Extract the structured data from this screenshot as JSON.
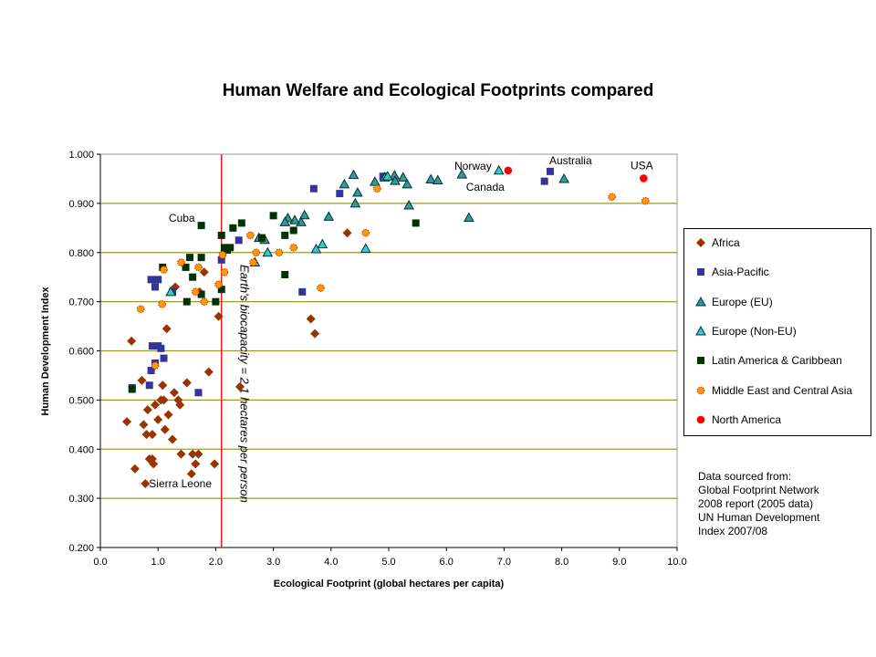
{
  "chart_data": {
    "type": "scatter",
    "title": "Human Welfare and Ecological Footprints compared",
    "xlabel": "Ecological Footprint (global hectares per capita)",
    "ylabel": "Human Development Index",
    "xlim": [
      0,
      10
    ],
    "ylim": [
      0.2,
      1.0
    ],
    "xticks": [
      "0.0",
      "1.0",
      "2.0",
      "3.0",
      "4.0",
      "5.0",
      "6.0",
      "7.0",
      "8.0",
      "9.0",
      "10.0"
    ],
    "yticks": [
      "0.200",
      "0.300",
      "0.400",
      "0.500",
      "0.600",
      "0.700",
      "0.800",
      "0.900",
      "1.000"
    ],
    "grid": "horizontal",
    "legend_placement": "right",
    "reference_line": {
      "x": 2.1,
      "label": "Earth's biocapacity = 2.1 hectares per person",
      "color": "#FF0000"
    },
    "annotations": [
      {
        "text": "Cuba",
        "x": 1.75,
        "y": 0.855
      },
      {
        "text": "Sierra Leone",
        "x": 0.78,
        "y": 0.33
      },
      {
        "text": "Norway",
        "x": 6.91,
        "y": 0.967
      },
      {
        "text": "Canada",
        "x": 7.07,
        "y": 0.967
      },
      {
        "text": "Australia",
        "x": 7.8,
        "y": 0.965
      },
      {
        "text": "USA",
        "x": 9.42,
        "y": 0.951
      }
    ],
    "series": [
      {
        "name": "Africa",
        "marker": "diamond",
        "color": "#993300",
        "points": [
          [
            0.46,
            0.456
          ],
          [
            0.54,
            0.62
          ],
          [
            0.6,
            0.36
          ],
          [
            0.78,
            0.33
          ],
          [
            0.72,
            0.54
          ],
          [
            0.75,
            0.45
          ],
          [
            0.8,
            0.43
          ],
          [
            0.82,
            0.48
          ],
          [
            0.85,
            0.38
          ],
          [
            0.9,
            0.38
          ],
          [
            0.9,
            0.43
          ],
          [
            0.92,
            0.37
          ],
          [
            0.95,
            0.49
          ],
          [
            1.0,
            0.46
          ],
          [
            1.05,
            0.5
          ],
          [
            1.08,
            0.53
          ],
          [
            1.1,
            0.5
          ],
          [
            1.12,
            0.44
          ],
          [
            1.15,
            0.645
          ],
          [
            1.18,
            0.47
          ],
          [
            1.25,
            0.42
          ],
          [
            1.28,
            0.515
          ],
          [
            1.3,
            0.73
          ],
          [
            1.35,
            0.5
          ],
          [
            1.38,
            0.49
          ],
          [
            1.4,
            0.39
          ],
          [
            1.5,
            0.535
          ],
          [
            1.58,
            0.35
          ],
          [
            1.6,
            0.39
          ],
          [
            1.65,
            0.37
          ],
          [
            1.7,
            0.39
          ],
          [
            1.8,
            0.76
          ],
          [
            1.88,
            0.557
          ],
          [
            1.98,
            0.37
          ],
          [
            2.05,
            0.67
          ],
          [
            1.72,
            0.72
          ],
          [
            2.42,
            0.527
          ],
          [
            3.65,
            0.665
          ],
          [
            3.72,
            0.635
          ],
          [
            4.28,
            0.84
          ]
        ]
      },
      {
        "name": "Asia-Pacific",
        "marker": "square",
        "color": "#333399",
        "points": [
          [
            0.55,
            0.525
          ],
          [
            0.85,
            0.53
          ],
          [
            0.88,
            0.56
          ],
          [
            0.9,
            0.61
          ],
          [
            0.95,
            0.575
          ],
          [
            1.0,
            0.61
          ],
          [
            1.05,
            0.605
          ],
          [
            1.1,
            0.585
          ],
          [
            0.88,
            0.745
          ],
          [
            0.95,
            0.73
          ],
          [
            1.0,
            0.745
          ],
          [
            1.7,
            0.515
          ],
          [
            2.1,
            0.785
          ],
          [
            2.4,
            0.825
          ],
          [
            3.5,
            0.72
          ],
          [
            3.7,
            0.93
          ],
          [
            4.15,
            0.92
          ],
          [
            4.9,
            0.955
          ],
          [
            7.7,
            0.945
          ],
          [
            7.8,
            0.965
          ],
          [
            1.25,
            0.72
          ]
        ]
      },
      {
        "name": "Europe (EU)",
        "marker": "triangle",
        "color": "#339999",
        "points": [
          [
            4.39,
            0.958
          ],
          [
            4.23,
            0.939
          ],
          [
            4.46,
            0.922
          ],
          [
            4.42,
            0.9
          ],
          [
            4.76,
            0.944
          ],
          [
            4.93,
            0.953
          ],
          [
            5.1,
            0.957
          ],
          [
            5.11,
            0.946
          ],
          [
            5.25,
            0.953
          ],
          [
            5.32,
            0.939
          ],
          [
            5.35,
            0.896
          ],
          [
            5.73,
            0.949
          ],
          [
            5.85,
            0.947
          ],
          [
            6.27,
            0.959
          ],
          [
            6.39,
            0.871
          ],
          [
            8.04,
            0.95
          ],
          [
            3.54,
            0.876
          ],
          [
            3.48,
            0.862
          ],
          [
            3.96,
            0.873
          ],
          [
            3.37,
            0.866
          ],
          [
            3.25,
            0.87
          ],
          [
            3.2,
            0.862
          ],
          [
            2.85,
            0.826
          ],
          [
            2.75,
            0.83
          ]
        ]
      },
      {
        "name": "Europe (Non-EU)",
        "marker": "triangle",
        "color": "#33CCCC",
        "points": [
          [
            6.91,
            0.967
          ],
          [
            4.98,
            0.955
          ],
          [
            3.74,
            0.807
          ],
          [
            3.85,
            0.817
          ],
          [
            4.6,
            0.808
          ],
          [
            1.22,
            0.72
          ],
          [
            2.68,
            0.78
          ],
          [
            2.9,
            0.8
          ]
        ]
      },
      {
        "name": "Latin America & Caribbean",
        "marker": "square",
        "color": "#003300",
        "points": [
          [
            0.55,
            0.522
          ],
          [
            1.08,
            0.77
          ],
          [
            1.48,
            0.77
          ],
          [
            1.55,
            0.79
          ],
          [
            1.6,
            0.75
          ],
          [
            1.75,
            0.79
          ],
          [
            1.75,
            0.715
          ],
          [
            1.5,
            0.7
          ],
          [
            1.75,
            0.855
          ],
          [
            2.0,
            0.7
          ],
          [
            2.1,
            0.835
          ],
          [
            2.15,
            0.81
          ],
          [
            2.2,
            0.805
          ],
          [
            2.3,
            0.85
          ],
          [
            2.45,
            0.86
          ],
          [
            2.1,
            0.725
          ],
          [
            2.25,
            0.81
          ],
          [
            3.0,
            0.875
          ],
          [
            3.2,
            0.835
          ],
          [
            2.8,
            0.83
          ],
          [
            3.2,
            0.755
          ],
          [
            3.35,
            0.845
          ],
          [
            5.47,
            0.86
          ]
        ]
      },
      {
        "name": "Middle East and Central Asia",
        "marker": "circle",
        "color": "#FF9900",
        "points": [
          [
            0.7,
            0.685
          ],
          [
            0.95,
            0.57
          ],
          [
            1.07,
            0.695
          ],
          [
            1.1,
            0.765
          ],
          [
            1.4,
            0.78
          ],
          [
            1.65,
            0.72
          ],
          [
            1.7,
            0.77
          ],
          [
            1.8,
            0.7
          ],
          [
            2.05,
            0.735
          ],
          [
            2.15,
            0.76
          ],
          [
            2.12,
            0.795
          ],
          [
            2.6,
            0.835
          ],
          [
            2.7,
            0.8
          ],
          [
            2.65,
            0.78
          ],
          [
            3.1,
            0.8
          ],
          [
            3.35,
            0.81
          ],
          [
            3.82,
            0.728
          ],
          [
            4.6,
            0.84
          ],
          [
            4.8,
            0.93
          ],
          [
            8.87,
            0.913
          ],
          [
            9.45,
            0.905
          ]
        ]
      },
      {
        "name": "North America",
        "marker": "circle",
        "color": "#FF0000",
        "points": [
          [
            7.07,
            0.967
          ],
          [
            9.42,
            0.951
          ]
        ]
      }
    ]
  },
  "source_note": [
    "Data sourced from:",
    "Global Footprint Network",
    "2008 report (2005 data)",
    "UN Human Development",
    "Index 2007/08"
  ]
}
